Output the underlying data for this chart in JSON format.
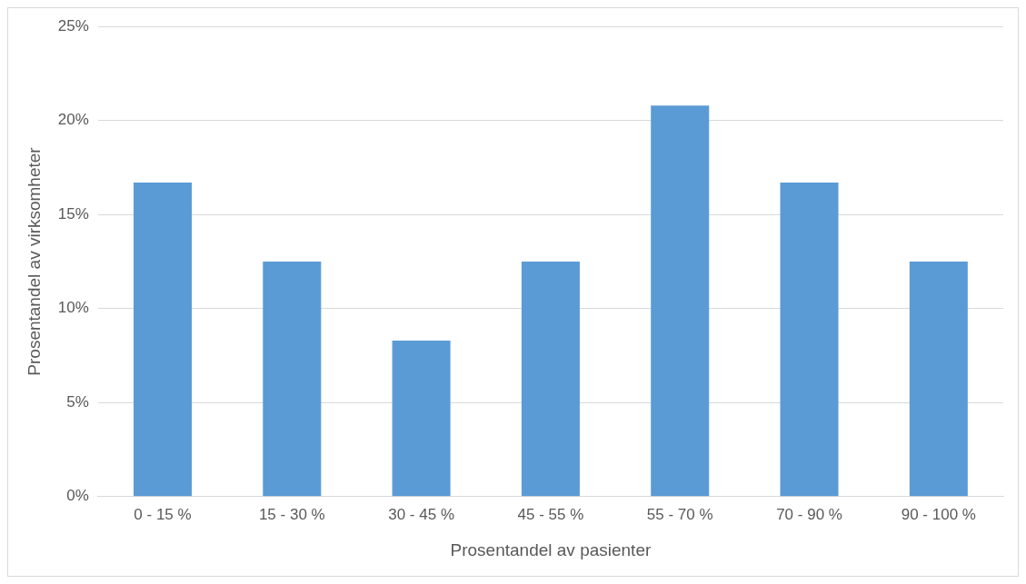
{
  "chart_data": {
    "type": "bar",
    "xlabel": "Prosentandel av pasienter",
    "ylabel": "Prosentandel av virksomheter",
    "categories": [
      "0 - 15 %",
      "15 - 30 %",
      "30 - 45 %",
      "45 - 55 %",
      "55 - 70 %",
      "70 - 90 %",
      "90 - 100 %"
    ],
    "values": [
      16.7,
      12.5,
      8.3,
      12.5,
      20.8,
      16.7,
      12.5
    ],
    "color": "#5b9bd5",
    "ylim": [
      0,
      25
    ],
    "yticks": [
      {
        "value": 0,
        "label": "0%"
      },
      {
        "value": 5,
        "label": "5%"
      },
      {
        "value": 10,
        "label": "10%"
      },
      {
        "value": 15,
        "label": "15%"
      },
      {
        "value": 20,
        "label": "20%"
      },
      {
        "value": 25,
        "label": "25%"
      }
    ],
    "grid": "y",
    "legend": false
  }
}
